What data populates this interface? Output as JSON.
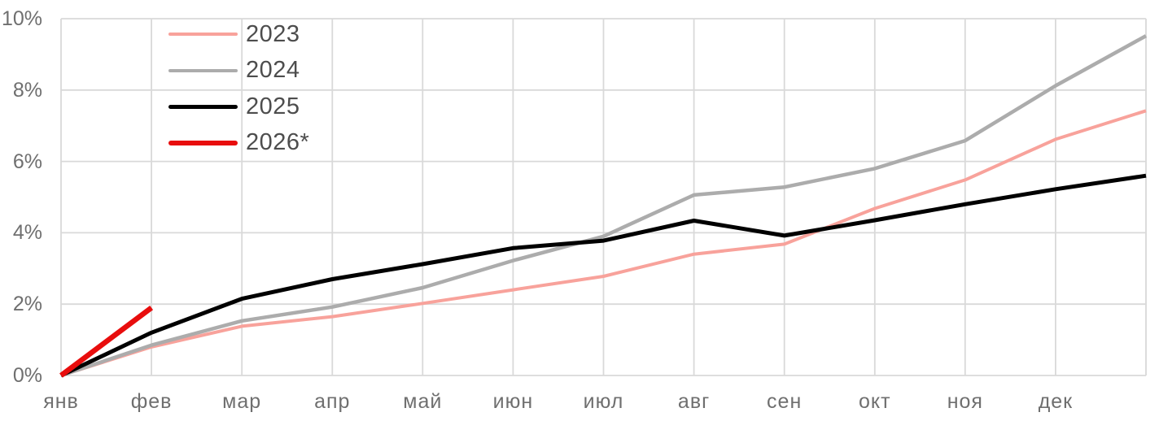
{
  "chart_data": {
    "type": "line",
    "title": "",
    "xlabel": "",
    "ylabel": "",
    "x_labels": [
      "янв",
      "фев",
      "мар",
      "апр",
      "май",
      "июн",
      "июл",
      "авг",
      "сен",
      "окт",
      "ноя",
      "дек"
    ],
    "x_points": 13,
    "x_points_note": "12 labeled month points plus one unlabeled year-end point at the right edge",
    "ylim": [
      0,
      10
    ],
    "y_tick_labels": [
      "0%",
      "2%",
      "4%",
      "6%",
      "8%",
      "10%"
    ],
    "grid": true,
    "legend_position": "top-left",
    "series": [
      {
        "name": "2023",
        "color": "#F8A29B",
        "line_width": 4,
        "values": [
          0,
          0.8,
          1.38,
          1.65,
          2.02,
          2.4,
          2.78,
          3.4,
          3.68,
          4.68,
          5.48,
          6.62,
          7.42
        ]
      },
      {
        "name": "2024",
        "color": "#ACACAC",
        "line_width": 4.5,
        "values": [
          0,
          0.85,
          1.53,
          1.92,
          2.46,
          3.22,
          3.9,
          5.06,
          5.28,
          5.8,
          6.58,
          8.12,
          9.52
        ]
      },
      {
        "name": "2025",
        "color": "#000000",
        "line_width": 5,
        "values": [
          0,
          1.2,
          2.15,
          2.7,
          3.12,
          3.57,
          3.78,
          4.34,
          3.92,
          4.35,
          4.8,
          5.22,
          5.6
        ]
      },
      {
        "name": "2026*",
        "color": "#E80D0D",
        "line_width": 6.5,
        "values": [
          0,
          1.9
        ]
      }
    ]
  },
  "colors": {
    "background": "#FFFFFF",
    "grid": "#D9D9D9",
    "axis_text": "#6F6F6F",
    "legend_text": "#4D4D4D"
  }
}
